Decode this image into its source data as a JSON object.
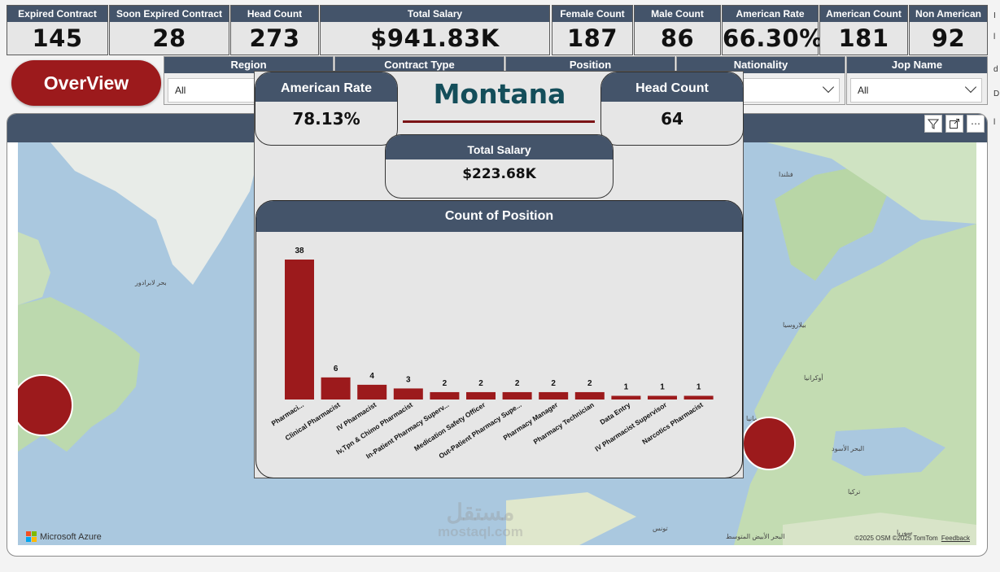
{
  "kpis": [
    {
      "label": "Expired Contract",
      "value": "145"
    },
    {
      "label": "Soon Expired Contract",
      "value": "28"
    },
    {
      "label": "Head Count",
      "value": "273"
    },
    {
      "label": "Total Salary",
      "value": "$941.83K"
    },
    {
      "label": "Female Count",
      "value": "187"
    },
    {
      "label": "Male Count",
      "value": "86"
    },
    {
      "label": "American Rate",
      "value": "66.30%"
    },
    {
      "label": "American Count",
      "value": "181"
    },
    {
      "label": "Non American",
      "value": "92"
    }
  ],
  "overview_button": "OverView",
  "filters": [
    {
      "label": "Region",
      "value": "All"
    },
    {
      "label": "Contract Type",
      "value": ""
    },
    {
      "label": "Position",
      "value": ""
    },
    {
      "label": "Nationality",
      "value": ""
    },
    {
      "label": "Jop Name",
      "value": "All"
    }
  ],
  "map": {
    "provider": "Microsoft Azure",
    "attribution": "©2025 OSM  ©2025 TomTom",
    "feedback": "Feedback",
    "labels": [
      "بحر لابرادور",
      "فنلندا",
      "بيلاروسيا",
      "أوكرانيا",
      "رومانيا",
      "البحر الأسود",
      "تركيا",
      "سوريا",
      "البحر الأبيض المتوسط",
      "تونس"
    ]
  },
  "watermark": {
    "arabic": "مستقل",
    "latin": "mostaql.com"
  },
  "tooltip": {
    "state": "Montana",
    "american_rate_label": "American Rate",
    "american_rate_value": "78.13%",
    "head_count_label": "Head Count",
    "head_count_value": "64",
    "total_salary_label": "Total Salary",
    "total_salary_value": "$223.68K",
    "chart_title": "Count of Position"
  },
  "chart_data": {
    "type": "bar",
    "title": "Count of Position",
    "categories": [
      "Pharmaci...",
      "Clinical Pharmacist",
      "IV Pharmacist",
      "Iv,Tpn & Chimo Pharmacist",
      "In-Patient Pharmacy Superv...",
      "Medication Safety Officer",
      "Out-Patient Pharmacy Supe...",
      "Pharmacy Manager",
      "Pharmacy Technician",
      "Data Entry",
      "IV Pharmacist Supervisor",
      "Narcotics Pharmacist"
    ],
    "values": [
      38,
      6,
      4,
      3,
      2,
      2,
      2,
      2,
      2,
      1,
      1,
      1
    ],
    "bar_color": "#9c1a1c",
    "grid": false
  },
  "colors": {
    "header": "#44546a",
    "accent": "#9c1a1c",
    "state_title": "#144e5a"
  }
}
